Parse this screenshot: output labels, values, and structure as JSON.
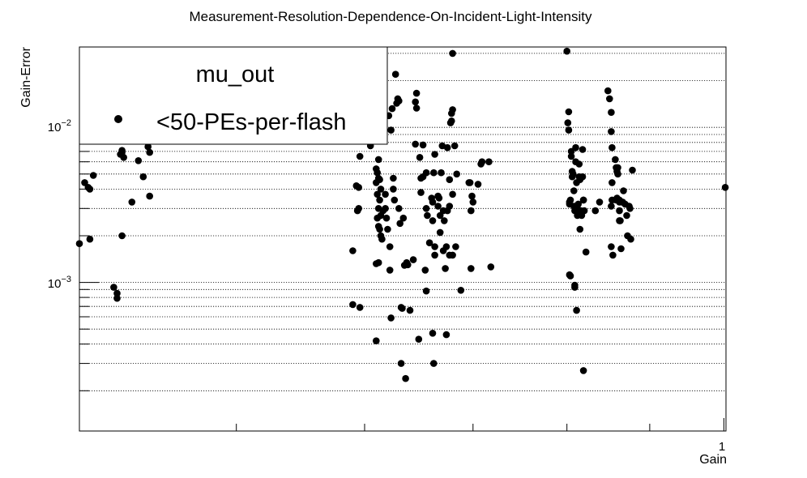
{
  "chart_data": {
    "type": "scatter",
    "title": "Measurement-Resolution-Dependence-On-Incident-Light-Intensity",
    "xlabel": "Gain",
    "ylabel": "Gain-Error",
    "x_scale": "log",
    "y_scale": "log",
    "xlim": [
      0.4,
      1.003
    ],
    "ylim": [
      0.00011,
      0.033
    ],
    "x_tick_labels": [
      "1"
    ],
    "y_tick_labels": [
      {
        "base": "10",
        "exp": "−2",
        "value": 0.01
      },
      {
        "base": "10",
        "exp": "−3",
        "value": 0.001
      }
    ],
    "grid": {
      "x": false,
      "y": true
    },
    "legend": {
      "position": "top-left",
      "header": "mu_out",
      "entries": [
        {
          "label": "<50-PEs-per-flash",
          "marker": "filled-circle",
          "color": "#000000"
        }
      ]
    },
    "series": [
      {
        "name": "<50-PEs-per-flash",
        "color": "#000000",
        "points": [
          [
            0.4,
            0.00178
          ],
          [
            0.403,
            0.0044
          ],
          [
            0.405,
            0.0041
          ],
          [
            0.406,
            0.004
          ],
          [
            0.406,
            0.0019
          ],
          [
            0.408,
            0.0049
          ],
          [
            0.42,
            0.00093
          ],
          [
            0.422,
            0.00085
          ],
          [
            0.422,
            0.00079
          ],
          [
            0.424,
            0.0067
          ],
          [
            0.425,
            0.0071
          ],
          [
            0.425,
            0.0069
          ],
          [
            0.425,
            0.002
          ],
          [
            0.426,
            0.0064
          ],
          [
            0.431,
            0.0033
          ],
          [
            0.435,
            0.0061
          ],
          [
            0.438,
            0.0048
          ],
          [
            0.441,
            0.0075
          ],
          [
            0.442,
            0.0069
          ],
          [
            0.442,
            0.0036
          ],
          [
            0.59,
            0.0016
          ],
          [
            0.593,
            0.0042
          ],
          [
            0.594,
            0.0029
          ],
          [
            0.595,
            0.0041
          ],
          [
            0.596,
            0.0065
          ],
          [
            0.595,
            0.003
          ],
          [
            0.59,
            0.00072
          ],
          [
            0.596,
            0.00069
          ],
          [
            0.605,
            0.0076
          ],
          [
            0.612,
            0.0062
          ],
          [
            0.61,
            0.0054
          ],
          [
            0.611,
            0.0051
          ],
          [
            0.612,
            0.0047
          ],
          [
            0.61,
            0.0044
          ],
          [
            0.613,
            0.0046
          ],
          [
            0.614,
            0.004
          ],
          [
            0.611,
            0.0037
          ],
          [
            0.613,
            0.0034
          ],
          [
            0.612,
            0.003
          ],
          [
            0.614,
            0.0027
          ],
          [
            0.611,
            0.0026
          ],
          [
            0.612,
            0.0023
          ],
          [
            0.613,
            0.0022
          ],
          [
            0.614,
            0.002
          ],
          [
            0.615,
            0.0019
          ],
          [
            0.616,
            0.0029
          ],
          [
            0.61,
            0.00132
          ],
          [
            0.612,
            0.00134
          ],
          [
            0.61,
            0.00042
          ],
          [
            0.618,
            0.0037
          ],
          [
            0.618,
            0.003
          ],
          [
            0.619,
            0.0026
          ],
          [
            0.62,
            0.0022
          ],
          [
            0.622,
            0.0017
          ],
          [
            0.622,
            0.0012
          ],
          [
            0.623,
            0.0096
          ],
          [
            0.621,
            0.0119
          ],
          [
            0.624,
            0.0132
          ],
          [
            0.625,
            0.0047
          ],
          [
            0.625,
            0.004
          ],
          [
            0.626,
            0.0034
          ],
          [
            0.623,
            0.00059
          ],
          [
            0.627,
            0.022
          ],
          [
            0.629,
            0.0153
          ],
          [
            0.63,
            0.0148
          ],
          [
            0.628,
            0.0143
          ],
          [
            0.63,
            0.003
          ],
          [
            0.631,
            0.0024
          ],
          [
            0.632,
            0.00069
          ],
          [
            0.633,
            0.00068
          ],
          [
            0.632,
            0.0003
          ],
          [
            0.634,
            0.0026
          ],
          [
            0.635,
            0.00129
          ],
          [
            0.637,
            0.00134
          ],
          [
            0.636,
            0.00024
          ],
          [
            0.638,
            0.0013
          ],
          [
            0.643,
            0.0014
          ],
          [
            0.64,
            0.00066
          ],
          [
            0.646,
            0.0166
          ],
          [
            0.645,
            0.0146
          ],
          [
            0.646,
            0.0133
          ],
          [
            0.645,
            0.0078
          ],
          [
            0.649,
            0.0064
          ],
          [
            0.65,
            0.0047
          ],
          [
            0.65,
            0.0038
          ],
          [
            0.652,
            0.0048
          ],
          [
            0.652,
            0.0077
          ],
          [
            0.648,
            0.00043
          ],
          [
            0.655,
            0.0051
          ],
          [
            0.655,
            0.003
          ],
          [
            0.656,
            0.0027
          ],
          [
            0.654,
            0.0012
          ],
          [
            0.655,
            0.00088
          ],
          [
            0.658,
            0.0018
          ],
          [
            0.66,
            0.0035
          ],
          [
            0.661,
            0.0033
          ],
          [
            0.661,
            0.0025
          ],
          [
            0.662,
            0.0051
          ],
          [
            0.663,
            0.0067
          ],
          [
            0.663,
            0.0017
          ],
          [
            0.663,
            0.0015
          ],
          [
            0.661,
            0.00047
          ],
          [
            0.662,
            0.0003
          ],
          [
            0.666,
            0.0036
          ],
          [
            0.667,
            0.0035
          ],
          [
            0.668,
            0.0027
          ],
          [
            0.668,
            0.0021
          ],
          [
            0.666,
            0.0031
          ],
          [
            0.669,
            0.0051
          ],
          [
            0.67,
            0.0076
          ],
          [
            0.671,
            0.0029
          ],
          [
            0.671,
            0.0016
          ],
          [
            0.672,
            0.0025
          ],
          [
            0.673,
            0.00123
          ],
          [
            0.674,
            0.0017
          ],
          [
            0.674,
            0.00046
          ],
          [
            0.675,
            0.0029
          ],
          [
            0.675,
            0.0074
          ],
          [
            0.677,
            0.0031
          ],
          [
            0.677,
            0.0046
          ],
          [
            0.677,
            0.0015
          ],
          [
            0.678,
            0.0107
          ],
          [
            0.679,
            0.011
          ],
          [
            0.679,
            0.0123
          ],
          [
            0.68,
            0.013
          ],
          [
            0.68,
            0.0037
          ],
          [
            0.68,
            0.0015
          ],
          [
            0.682,
            0.0076
          ],
          [
            0.683,
            0.0017
          ],
          [
            0.684,
            0.005
          ],
          [
            0.68,
            0.03
          ],
          [
            0.688,
            0.00089
          ],
          [
            0.696,
            0.0044
          ],
          [
            0.697,
            0.0044
          ],
          [
            0.698,
            0.0029
          ],
          [
            0.699,
            0.0036
          ],
          [
            0.7,
            0.0033
          ],
          [
            0.698,
            0.00123
          ],
          [
            0.705,
            0.0043
          ],
          [
            0.708,
            0.0058
          ],
          [
            0.709,
            0.006
          ],
          [
            0.716,
            0.006
          ],
          [
            0.718,
            0.00126
          ],
          [
            0.8,
            0.031
          ],
          [
            0.801,
            0.0107
          ],
          [
            0.802,
            0.0096
          ],
          [
            0.802,
            0.0126
          ],
          [
            0.803,
            0.0033
          ],
          [
            0.803,
            0.0032
          ],
          [
            0.804,
            0.0034
          ],
          [
            0.803,
            0.00112
          ],
          [
            0.804,
            0.0011
          ],
          [
            0.805,
            0.007
          ],
          [
            0.805,
            0.0065
          ],
          [
            0.806,
            0.0048
          ],
          [
            0.806,
            0.0052
          ],
          [
            0.807,
            0.005
          ],
          [
            0.808,
            0.0039
          ],
          [
            0.808,
            0.0031
          ],
          [
            0.809,
            0.0029
          ],
          [
            0.809,
            0.00096
          ],
          [
            0.809,
            0.00093
          ],
          [
            0.81,
            0.0074
          ],
          [
            0.81,
            0.006
          ],
          [
            0.811,
            0.0044
          ],
          [
            0.811,
            0.0031
          ],
          [
            0.812,
            0.003
          ],
          [
            0.812,
            0.0027
          ],
          [
            0.813,
            0.0032
          ],
          [
            0.813,
            0.0028
          ],
          [
            0.811,
            0.00066
          ],
          [
            0.814,
            0.0058
          ],
          [
            0.814,
            0.0048
          ],
          [
            0.815,
            0.0046
          ],
          [
            0.815,
            0.0022
          ],
          [
            0.816,
            0.0029
          ],
          [
            0.817,
            0.0027
          ],
          [
            0.818,
            0.0072
          ],
          [
            0.818,
            0.0048
          ],
          [
            0.819,
            0.0034
          ],
          [
            0.819,
            0.0034
          ],
          [
            0.819,
            0.00027
          ],
          [
            0.82,
            0.0029
          ],
          [
            0.822,
            0.00157
          ],
          [
            0.83,
            0.0001
          ],
          [
            0.833,
            0.0029
          ],
          [
            0.838,
            0.0033
          ],
          [
            0.848,
            0.0172
          ],
          [
            0.85,
            0.0153
          ],
          [
            0.852,
            0.0125
          ],
          [
            0.852,
            0.0094
          ],
          [
            0.853,
            0.0074
          ],
          [
            0.853,
            0.0044
          ],
          [
            0.853,
            0.0034
          ],
          [
            0.852,
            0.0031
          ],
          [
            0.852,
            0.0017
          ],
          [
            0.854,
            0.0015
          ],
          [
            0.857,
            0.0062
          ],
          [
            0.858,
            0.0055
          ],
          [
            0.859,
            0.0052
          ],
          [
            0.859,
            0.0035
          ],
          [
            0.858,
            0.0034
          ],
          [
            0.86,
            0.0055
          ],
          [
            0.86,
            0.005
          ],
          [
            0.862,
            0.0034
          ],
          [
            0.862,
            0.0033
          ],
          [
            0.862,
            0.0029
          ],
          [
            0.862,
            0.0025
          ],
          [
            0.863,
            0.0025
          ],
          [
            0.864,
            0.00165
          ],
          [
            0.865,
            0.0033
          ],
          [
            0.866,
            0.0033
          ],
          [
            0.867,
            0.0039
          ],
          [
            0.869,
            0.0032
          ],
          [
            0.871,
            0.0027
          ],
          [
            0.872,
            0.002
          ],
          [
            0.874,
            0.0031
          ],
          [
            0.875,
            0.003
          ],
          [
            0.876,
            0.0019
          ],
          [
            0.878,
            0.0053
          ],
          [
            1.002,
            0.0041
          ]
        ]
      }
    ]
  }
}
